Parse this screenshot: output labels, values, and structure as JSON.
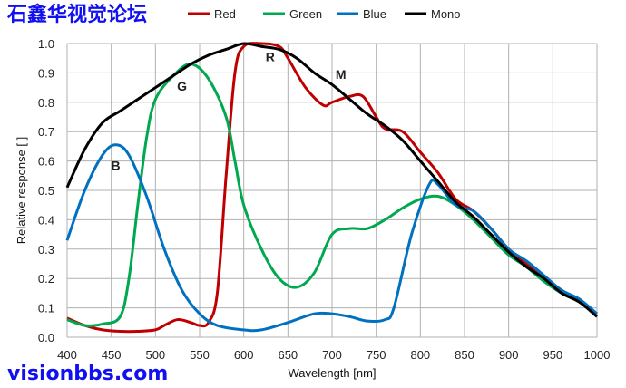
{
  "chart_data": {
    "type": "line",
    "title": "",
    "xlabel": "Wavelength [nm]",
    "ylabel": "Relative response [ ]",
    "xlim": [
      400,
      1000
    ],
    "ylim": [
      0,
      1.0
    ],
    "xticks": [
      "400",
      "450",
      "500",
      "550",
      "600",
      "650",
      "700",
      "750",
      "800",
      "850",
      "900",
      "950",
      "1000"
    ],
    "yticks": [
      "0.0",
      "0.1",
      "0.2",
      "0.3",
      "0.4",
      "0.5",
      "0.6",
      "0.7",
      "0.8",
      "0.9",
      "1.0"
    ],
    "grid": true,
    "legend_position": "top",
    "series": [
      {
        "name": "Red",
        "color": "#c00000",
        "label": "R",
        "x": [
          400,
          420,
          440,
          460,
          480,
          500,
          510,
          525,
          540,
          550,
          560,
          570,
          580,
          590,
          600,
          620,
          640,
          650,
          670,
          690,
          700,
          720,
          735,
          750,
          760,
          780,
          800,
          820,
          840,
          860,
          880,
          900,
          920,
          940,
          960,
          980,
          1000
        ],
        "y": [
          0.065,
          0.04,
          0.025,
          0.02,
          0.02,
          0.025,
          0.04,
          0.06,
          0.05,
          0.04,
          0.05,
          0.15,
          0.55,
          0.9,
          0.99,
          1.0,
          0.99,
          0.95,
          0.85,
          0.79,
          0.8,
          0.82,
          0.82,
          0.75,
          0.71,
          0.7,
          0.63,
          0.56,
          0.47,
          0.43,
          0.37,
          0.3,
          0.25,
          0.2,
          0.16,
          0.12,
          0.08
        ]
      },
      {
        "name": "Green",
        "color": "#00a850",
        "label": "G",
        "x": [
          400,
          420,
          440,
          460,
          470,
          480,
          490,
          500,
          520,
          540,
          560,
          580,
          590,
          600,
          620,
          640,
          660,
          680,
          700,
          720,
          740,
          760,
          780,
          800,
          820,
          840,
          860,
          880,
          900,
          920,
          940,
          960,
          980,
          1000
        ],
        "y": [
          0.06,
          0.04,
          0.045,
          0.07,
          0.2,
          0.45,
          0.68,
          0.81,
          0.89,
          0.93,
          0.88,
          0.75,
          0.6,
          0.45,
          0.3,
          0.2,
          0.17,
          0.22,
          0.35,
          0.37,
          0.37,
          0.4,
          0.44,
          0.47,
          0.48,
          0.45,
          0.4,
          0.34,
          0.28,
          0.24,
          0.19,
          0.15,
          0.12,
          0.08
        ]
      },
      {
        "name": "Blue",
        "color": "#0070c0",
        "label": "B",
        "x": [
          400,
          420,
          440,
          455,
          470,
          490,
          510,
          530,
          550,
          570,
          600,
          620,
          650,
          680,
          700,
          720,
          740,
          760,
          770,
          790,
          810,
          820,
          840,
          860,
          880,
          900,
          920,
          940,
          960,
          980,
          1000
        ],
        "y": [
          0.33,
          0.5,
          0.62,
          0.655,
          0.62,
          0.48,
          0.3,
          0.16,
          0.08,
          0.04,
          0.025,
          0.025,
          0.05,
          0.08,
          0.08,
          0.07,
          0.055,
          0.06,
          0.1,
          0.35,
          0.52,
          0.52,
          0.45,
          0.43,
          0.37,
          0.3,
          0.26,
          0.21,
          0.16,
          0.13,
          0.08
        ]
      },
      {
        "name": "Mono",
        "color": "#000000",
        "label": "M",
        "x": [
          400,
          420,
          440,
          460,
          480,
          500,
          520,
          540,
          560,
          580,
          600,
          620,
          640,
          660,
          680,
          700,
          720,
          740,
          760,
          780,
          800,
          820,
          840,
          860,
          880,
          900,
          920,
          940,
          960,
          980,
          1000
        ],
        "y": [
          0.51,
          0.64,
          0.73,
          0.77,
          0.81,
          0.85,
          0.89,
          0.93,
          0.96,
          0.98,
          1.0,
          0.99,
          0.98,
          0.95,
          0.9,
          0.86,
          0.81,
          0.76,
          0.72,
          0.67,
          0.6,
          0.53,
          0.46,
          0.41,
          0.35,
          0.29,
          0.24,
          0.2,
          0.15,
          0.12,
          0.07
        ]
      }
    ],
    "annotations": [
      {
        "text": "B",
        "x": 455,
        "y": 0.57
      },
      {
        "text": "G",
        "x": 530,
        "y": 0.84
      },
      {
        "text": "R",
        "x": 630,
        "y": 0.94
      },
      {
        "text": "M",
        "x": 710,
        "y": 0.88
      }
    ]
  },
  "watermark": {
    "line1": "石鑫华视觉论坛",
    "line2": "visionbbs.com"
  }
}
